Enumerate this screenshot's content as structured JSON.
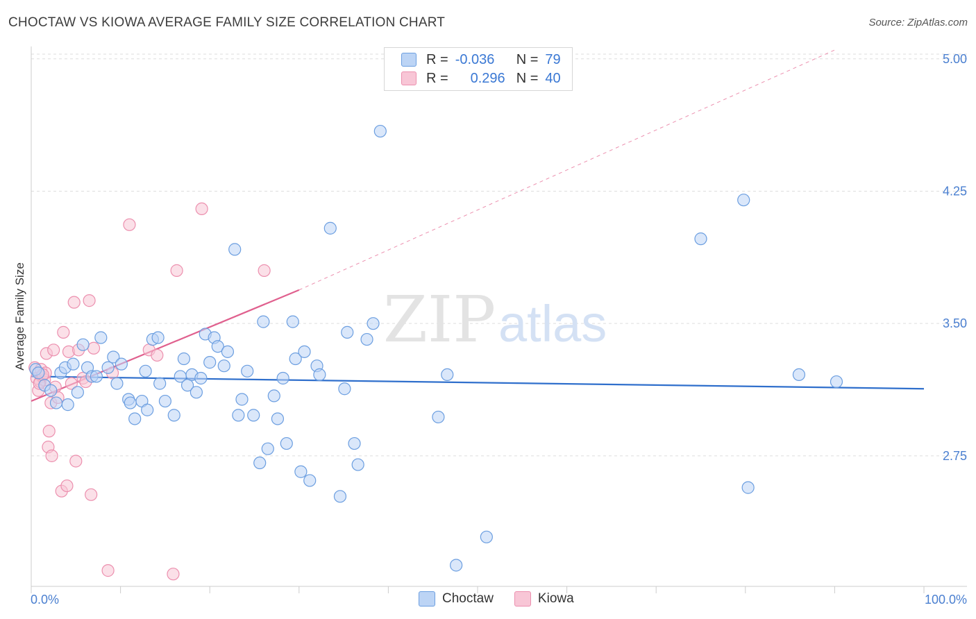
{
  "title": "CHOCTAW VS KIOWA AVERAGE FAMILY SIZE CORRELATION CHART",
  "source": "Source: ZipAtlas.com",
  "watermark": {
    "zip": "ZIP",
    "atlas": "atlas"
  },
  "legend": {
    "rows": [
      {
        "r_label": "R =",
        "r_value": "-0.036",
        "n_label": "N =",
        "n_value": "79"
      },
      {
        "r_label": "R =",
        "r_value": "0.296",
        "n_label": "N =",
        "n_value": "40"
      }
    ]
  },
  "colors": {
    "choctaw_fill": "#bcd4f5",
    "choctaw_stroke": "#6b9ee0",
    "choctaw_line": "#2f6fcc",
    "kiowa_fill": "#f8c6d6",
    "kiowa_stroke": "#ec8fae",
    "kiowa_line": "#e0608e",
    "grid": "#dddddd",
    "axis_text": "#4a7fd0"
  },
  "chart_data": {
    "type": "scatter",
    "title": "CHOCTAW VS KIOWA AVERAGE FAMILY SIZE CORRELATION CHART",
    "xlabel": "",
    "ylabel": "Average Family Size",
    "xlim": [
      0,
      100
    ],
    "ylim": [
      2.0,
      5.1
    ],
    "y_ticks": [
      2.75,
      3.5,
      4.25,
      5.0
    ],
    "y_tick_labels": [
      "2.75",
      "3.50",
      "4.25",
      "5.00"
    ],
    "x_tick_labels": [
      "0.0%",
      "100.0%"
    ],
    "series": [
      {
        "name": "Choctaw",
        "trend": {
          "x0": 0,
          "y0": 3.2,
          "x1": 100,
          "y1": 3.13
        },
        "points": [
          [
            0.5,
            3.24
          ],
          [
            0.8,
            3.22
          ],
          [
            1.5,
            3.15
          ],
          [
            2.2,
            3.12
          ],
          [
            3.3,
            3.22
          ],
          [
            3.8,
            3.25
          ],
          [
            4.1,
            3.04
          ],
          [
            4.7,
            3.27
          ],
          [
            5.2,
            3.11
          ],
          [
            5.8,
            3.38
          ],
          [
            6.3,
            3.25
          ],
          [
            6.8,
            3.2
          ],
          [
            7.3,
            3.2
          ],
          [
            7.8,
            3.42
          ],
          [
            8.6,
            3.25
          ],
          [
            9.2,
            3.31
          ],
          [
            9.6,
            3.16
          ],
          [
            10.1,
            3.27
          ],
          [
            10.9,
            3.07
          ],
          [
            11.1,
            3.05
          ],
          [
            11.6,
            2.96
          ],
          [
            12.4,
            3.06
          ],
          [
            12.8,
            3.23
          ],
          [
            13.0,
            3.01
          ],
          [
            13.6,
            3.41
          ],
          [
            14.2,
            3.42
          ],
          [
            14.4,
            3.16
          ],
          [
            15.0,
            3.06
          ],
          [
            16.0,
            2.98
          ],
          [
            16.7,
            3.2
          ],
          [
            17.1,
            3.3
          ],
          [
            17.5,
            3.15
          ],
          [
            18.0,
            3.21
          ],
          [
            18.5,
            3.11
          ],
          [
            19.0,
            3.19
          ],
          [
            19.5,
            3.44
          ],
          [
            20.0,
            3.28
          ],
          [
            20.5,
            3.42
          ],
          [
            20.9,
            3.37
          ],
          [
            21.6,
            3.26
          ],
          [
            22.0,
            3.34
          ],
          [
            22.8,
            3.92
          ],
          [
            23.2,
            2.98
          ],
          [
            23.6,
            3.07
          ],
          [
            24.2,
            3.23
          ],
          [
            24.9,
            2.98
          ],
          [
            25.6,
            2.71
          ],
          [
            26.0,
            3.51
          ],
          [
            26.5,
            2.79
          ],
          [
            27.2,
            3.09
          ],
          [
            27.6,
            2.96
          ],
          [
            28.2,
            3.19
          ],
          [
            28.6,
            2.82
          ],
          [
            29.3,
            3.51
          ],
          [
            29.6,
            3.3
          ],
          [
            30.2,
            2.66
          ],
          [
            30.6,
            3.34
          ],
          [
            31.2,
            2.61
          ],
          [
            32.0,
            3.26
          ],
          [
            32.3,
            3.21
          ],
          [
            33.5,
            4.04
          ],
          [
            34.6,
            2.52
          ],
          [
            35.1,
            3.13
          ],
          [
            35.4,
            3.45
          ],
          [
            36.2,
            2.82
          ],
          [
            36.6,
            2.7
          ],
          [
            37.6,
            3.41
          ],
          [
            38.3,
            3.5
          ],
          [
            39.1,
            4.59
          ],
          [
            45.6,
            2.97
          ],
          [
            46.6,
            3.21
          ],
          [
            47.6,
            2.13
          ],
          [
            51.0,
            2.29
          ],
          [
            75.0,
            3.98
          ],
          [
            79.8,
            4.2
          ],
          [
            80.3,
            2.57
          ],
          [
            86.0,
            3.21
          ],
          [
            90.2,
            3.17
          ],
          [
            2.8,
            3.05
          ]
        ]
      },
      {
        "name": "Kiowa",
        "trend": {
          "x0": 0,
          "y0": 3.06,
          "x1": 30,
          "y1": 3.69,
          "dashed_to": {
            "x": 90,
            "y": 5.05
          }
        },
        "points": [
          [
            0.4,
            3.25
          ],
          [
            0.6,
            3.19
          ],
          [
            0.8,
            3.12
          ],
          [
            1.0,
            3.17
          ],
          [
            1.2,
            3.2
          ],
          [
            1.5,
            3.18
          ],
          [
            1.7,
            3.33
          ],
          [
            1.9,
            2.8
          ],
          [
            2.0,
            2.89
          ],
          [
            2.2,
            3.05
          ],
          [
            2.3,
            2.75
          ],
          [
            2.5,
            3.35
          ],
          [
            2.7,
            3.14
          ],
          [
            3.0,
            3.08
          ],
          [
            3.4,
            2.55
          ],
          [
            3.6,
            3.45
          ],
          [
            4.0,
            2.58
          ],
          [
            4.2,
            3.34
          ],
          [
            4.5,
            3.16
          ],
          [
            4.8,
            3.62
          ],
          [
            5.0,
            2.72
          ],
          [
            5.3,
            3.35
          ],
          [
            5.8,
            3.19
          ],
          [
            6.1,
            3.17
          ],
          [
            6.5,
            3.63
          ],
          [
            6.7,
            2.53
          ],
          [
            7.0,
            3.36
          ],
          [
            8.6,
            2.1
          ],
          [
            9.1,
            3.22
          ],
          [
            11.0,
            4.06
          ],
          [
            13.2,
            3.35
          ],
          [
            14.1,
            3.32
          ],
          [
            15.9,
            2.08
          ],
          [
            16.3,
            3.8
          ],
          [
            19.1,
            4.15
          ],
          [
            26.1,
            3.8
          ],
          [
            1.1,
            3.24
          ],
          [
            0.9,
            3.16
          ],
          [
            1.6,
            3.22
          ],
          [
            1.3,
            3.21
          ]
        ]
      }
    ]
  },
  "bottom_legend": [
    {
      "label": "Choctaw"
    },
    {
      "label": "Kiowa"
    }
  ]
}
